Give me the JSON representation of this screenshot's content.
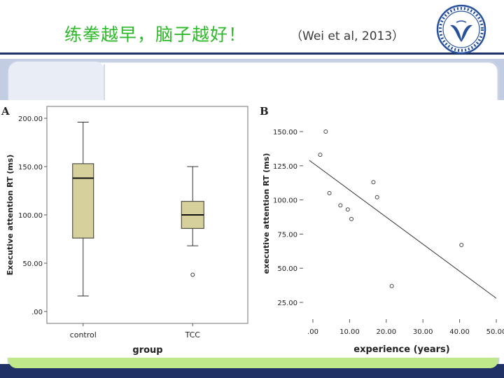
{
  "slide": {
    "title": "练拳越早，脑子越好！",
    "reference": "（Wei et al, 2013）"
  },
  "colors": {
    "title_green": "#2fb82a",
    "box_fill": "#d5d09c",
    "banner_navy": "#1f3266",
    "frame_blue": "#cad3e6",
    "bottom_green": "#bfe88a",
    "logo_blue": "#27509a"
  },
  "logo": {
    "icon": "university-seal-icon"
  },
  "chart_data": [
    {
      "type": "box",
      "panel_label": "A",
      "xlabel": "group",
      "ylabel": "Executive attention RT (ms)",
      "ylim": [
        0,
        200
      ],
      "yticks": [
        ".00",
        "50.00",
        "100.00",
        "150.00",
        "200.00"
      ],
      "ytick_values": [
        0,
        50,
        100,
        150,
        200
      ],
      "grid": false,
      "categories": [
        "control",
        "TCC"
      ],
      "boxes": [
        {
          "category": "control",
          "min": 16,
          "q1": 76,
          "median": 138,
          "q3": 153,
          "max": 196,
          "outliers": []
        },
        {
          "category": "TCC",
          "min": 68,
          "q1": 86,
          "median": 100,
          "q3": 114,
          "max": 150,
          "outliers": [
            38
          ]
        }
      ]
    },
    {
      "type": "scatter",
      "panel_label": "B",
      "xlabel": "experience (years)",
      "ylabel": "executive attention RT (ms)",
      "xlim": [
        0,
        50
      ],
      "ylim": [
        25,
        150
      ],
      "xticks": [
        ".00",
        "10.00",
        "20.00",
        "30.00",
        "40.00",
        "50.00"
      ],
      "xtick_values": [
        0,
        10,
        20,
        30,
        40,
        50
      ],
      "yticks": [
        "25.00",
        "50.00",
        "75.00",
        "100.00",
        "125.00",
        "150.00"
      ],
      "ytick_values": [
        25,
        50,
        75,
        100,
        125,
        150
      ],
      "grid": false,
      "points": [
        {
          "x": 2,
          "y": 133
        },
        {
          "x": 3.5,
          "y": 150
        },
        {
          "x": 4.5,
          "y": 105
        },
        {
          "x": 7.5,
          "y": 96
        },
        {
          "x": 9.5,
          "y": 93
        },
        {
          "x": 10.5,
          "y": 86
        },
        {
          "x": 16.5,
          "y": 113
        },
        {
          "x": 17.5,
          "y": 102
        },
        {
          "x": 21.5,
          "y": 37
        },
        {
          "x": 40.5,
          "y": 67
        }
      ],
      "fit_line": {
        "x": [
          -1,
          50
        ],
        "y": [
          129,
          28
        ]
      }
    }
  ]
}
